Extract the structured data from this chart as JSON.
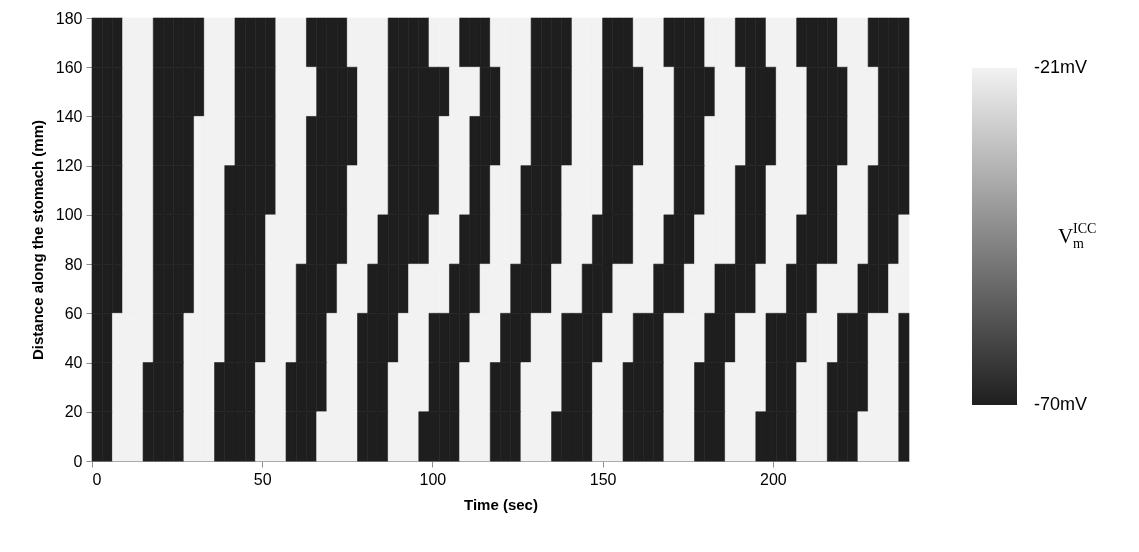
{
  "chart_data": {
    "type": "heatmap",
    "xlabel": "Time (sec)",
    "ylabel": "Distance along the stomach (mm)",
    "clabel": "V$^{ICC}$$_{m}$",
    "xlim": [
      0,
      240
    ],
    "xticks": [
      0,
      50,
      100,
      150,
      200
    ],
    "ylim": [
      0,
      180
    ],
    "yticks": [
      0,
      20,
      40,
      60,
      80,
      100,
      120,
      140,
      160,
      180
    ],
    "clim": [
      -70,
      -21
    ],
    "cticks": [
      {
        "value": -21,
        "label": "-21mV"
      },
      {
        "value": -70,
        "label": "-70mV"
      }
    ],
    "cells": [
      [
        -70,
        -70,
        -70,
        -21,
        -21,
        -21,
        -70,
        -70,
        -70,
        -70,
        -70,
        -21,
        -21,
        -21,
        -70,
        -70,
        -70,
        -70,
        -21,
        -21,
        -21,
        -70,
        -70,
        -70,
        -70,
        -21,
        -21,
        -21,
        -21,
        -70,
        -70,
        -70,
        -70,
        -21,
        -21,
        -21,
        -70,
        -70,
        -70,
        -21,
        -21,
        -21,
        -21,
        -70,
        -70,
        -70,
        -70,
        -21,
        -21,
        -21,
        -70,
        -70,
        -70,
        -21,
        -21,
        -21,
        -70,
        -70,
        -70,
        -70,
        -21,
        -21,
        -21,
        -70,
        -70,
        -70,
        -21,
        -21,
        -21,
        -70,
        -70,
        -70,
        -70,
        -21,
        -21,
        -21,
        -70,
        -70,
        -70,
        -70
      ],
      [
        -70,
        -70,
        -70,
        -21,
        -21,
        -21,
        -70,
        -70,
        -70,
        -70,
        -70,
        -21,
        -21,
        -21,
        -70,
        -70,
        -70,
        -70,
        -21,
        -21,
        -21,
        -21,
        -70,
        -70,
        -70,
        -70,
        -21,
        -21,
        -21,
        -70,
        -70,
        -70,
        -70,
        -70,
        -70,
        -21,
        -21,
        -21,
        -70,
        -70,
        -21,
        -21,
        -21,
        -70,
        -70,
        -70,
        -70,
        -21,
        -21,
        -21,
        -70,
        -70,
        -70,
        -70,
        -21,
        -21,
        -21,
        -70,
        -70,
        -70,
        -70,
        -21,
        -21,
        -21,
        -70,
        -70,
        -70,
        -21,
        -21,
        -21,
        -70,
        -70,
        -70,
        -70,
        -21,
        -21,
        -21,
        -70,
        -70,
        -70
      ],
      [
        -70,
        -70,
        -70,
        -21,
        -21,
        -21,
        -70,
        -70,
        -70,
        -70,
        -21,
        -21,
        -21,
        -21,
        -70,
        -70,
        -70,
        -70,
        -21,
        -21,
        -21,
        -70,
        -70,
        -70,
        -70,
        -70,
        -21,
        -21,
        -21,
        -70,
        -70,
        -70,
        -70,
        -70,
        -21,
        -21,
        -21,
        -70,
        -70,
        -70,
        -21,
        -21,
        -21,
        -70,
        -70,
        -70,
        -70,
        -21,
        -21,
        -21,
        -70,
        -70,
        -70,
        -70,
        -21,
        -21,
        -21,
        -70,
        -70,
        -70,
        -21,
        -21,
        -21,
        -21,
        -70,
        -70,
        -70,
        -21,
        -21,
        -21,
        -70,
        -70,
        -70,
        -70,
        -21,
        -21,
        -21,
        -70,
        -70,
        -70
      ],
      [
        -70,
        -70,
        -70,
        -21,
        -21,
        -21,
        -70,
        -70,
        -70,
        -70,
        -21,
        -21,
        -21,
        -70,
        -70,
        -70,
        -70,
        -70,
        -21,
        -21,
        -21,
        -70,
        -70,
        -70,
        -70,
        -21,
        -21,
        -21,
        -21,
        -70,
        -70,
        -70,
        -70,
        -70,
        -21,
        -21,
        -21,
        -70,
        -70,
        -21,
        -21,
        -21,
        -70,
        -70,
        -70,
        -70,
        -21,
        -21,
        -21,
        -21,
        -70,
        -70,
        -70,
        -21,
        -21,
        -21,
        -21,
        -70,
        -70,
        -70,
        -21,
        -21,
        -21,
        -70,
        -70,
        -70,
        -21,
        -21,
        -21,
        -21,
        -70,
        -70,
        -70,
        -21,
        -21,
        -21,
        -70,
        -70,
        -70,
        -70
      ],
      [
        -70,
        -70,
        -70,
        -21,
        -21,
        -21,
        -70,
        -70,
        -70,
        -70,
        -21,
        -21,
        -21,
        -70,
        -70,
        -70,
        -70,
        -21,
        -21,
        -21,
        -21,
        -70,
        -70,
        -70,
        -70,
        -21,
        -21,
        -21,
        -70,
        -70,
        -70,
        -70,
        -70,
        -21,
        -21,
        -21,
        -70,
        -70,
        -70,
        -21,
        -21,
        -21,
        -70,
        -70,
        -70,
        -70,
        -21,
        -21,
        -21,
        -70,
        -70,
        -70,
        -70,
        -21,
        -21,
        -21,
        -70,
        -70,
        -70,
        -21,
        -21,
        -21,
        -21,
        -70,
        -70,
        -70,
        -21,
        -21,
        -21,
        -70,
        -70,
        -70,
        -70,
        -21,
        -21,
        -21,
        -70,
        -70,
        -70,
        -21
      ],
      [
        -70,
        -70,
        -70,
        -21,
        -21,
        -21,
        -70,
        -70,
        -70,
        -70,
        -21,
        -21,
        -21,
        -70,
        -70,
        -70,
        -70,
        -21,
        -21,
        -21,
        -70,
        -70,
        -70,
        -70,
        -21,
        -21,
        -21,
        -70,
        -70,
        -70,
        -70,
        -21,
        -21,
        -21,
        -21,
        -70,
        -70,
        -70,
        -21,
        -21,
        -21,
        -70,
        -70,
        -70,
        -70,
        -21,
        -21,
        -21,
        -70,
        -70,
        -70,
        -21,
        -21,
        -21,
        -21,
        -70,
        -70,
        -70,
        -21,
        -21,
        -21,
        -70,
        -70,
        -70,
        -70,
        -21,
        -21,
        -21,
        -70,
        -70,
        -70,
        -21,
        -21,
        -21,
        -21,
        -70,
        -70,
        -70,
        -21,
        -21
      ],
      [
        -70,
        -70,
        -21,
        -21,
        -21,
        -21,
        -70,
        -70,
        -70,
        -21,
        -21,
        -21,
        -21,
        -70,
        -70,
        -70,
        -70,
        -21,
        -21,
        -21,
        -70,
        -70,
        -70,
        -21,
        -21,
        -21,
        -70,
        -70,
        -70,
        -70,
        -21,
        -21,
        -21,
        -70,
        -70,
        -70,
        -70,
        -21,
        -21,
        -21,
        -70,
        -70,
        -70,
        -21,
        -21,
        -21,
        -70,
        -70,
        -70,
        -70,
        -21,
        -21,
        -21,
        -70,
        -70,
        -70,
        -21,
        -21,
        -21,
        -21,
        -70,
        -70,
        -70,
        -21,
        -21,
        -21,
        -70,
        -70,
        -70,
        -70,
        -21,
        -21,
        -21,
        -70,
        -70,
        -70,
        -21,
        -21,
        -21,
        -70
      ],
      [
        -70,
        -70,
        -21,
        -21,
        -21,
        -70,
        -70,
        -70,
        -70,
        -21,
        -21,
        -21,
        -70,
        -70,
        -70,
        -70,
        -21,
        -21,
        -21,
        -70,
        -70,
        -70,
        -70,
        -21,
        -21,
        -21,
        -70,
        -70,
        -70,
        -21,
        -21,
        -21,
        -21,
        -70,
        -70,
        -70,
        -21,
        -21,
        -21,
        -70,
        -70,
        -70,
        -21,
        -21,
        -21,
        -21,
        -70,
        -70,
        -70,
        -21,
        -21,
        -21,
        -70,
        -70,
        -70,
        -70,
        -21,
        -21,
        -21,
        -70,
        -70,
        -70,
        -21,
        -21,
        -21,
        -21,
        -70,
        -70,
        -70,
        -21,
        -21,
        -21,
        -70,
        -70,
        -70,
        -70,
        -21,
        -21,
        -21,
        -70
      ],
      [
        -70,
        -70,
        -21,
        -21,
        -21,
        -70,
        -70,
        -70,
        -70,
        -21,
        -21,
        -21,
        -70,
        -70,
        -70,
        -70,
        -21,
        -21,
        -21,
        -70,
        -70,
        -70,
        -21,
        -21,
        -21,
        -21,
        -70,
        -70,
        -70,
        -21,
        -21,
        -21,
        -70,
        -70,
        -70,
        -70,
        -21,
        -21,
        -21,
        -70,
        -70,
        -70,
        -21,
        -21,
        -21,
        -70,
        -70,
        -70,
        -70,
        -21,
        -21,
        -21,
        -70,
        -70,
        -70,
        -70,
        -21,
        -21,
        -21,
        -70,
        -70,
        -70,
        -21,
        -21,
        -21,
        -70,
        -70,
        -70,
        -70,
        -21,
        -21,
        -21,
        -70,
        -70,
        -70,
        -21,
        -21,
        -21,
        -21,
        -70
      ]
    ]
  }
}
